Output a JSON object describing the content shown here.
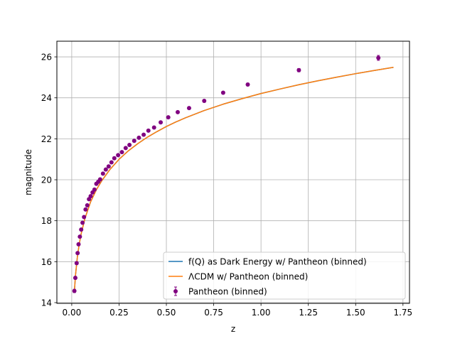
{
  "chart_data": {
    "type": "scatter",
    "xlabel": "z",
    "ylabel": "magnitude",
    "xlim": [
      -0.0785,
      1.7845
    ],
    "ylim": [
      13.965,
      26.765
    ],
    "xticks": [
      0.0,
      0.25,
      0.5,
      0.75,
      1.0,
      1.25,
      1.5,
      1.75
    ],
    "xtick_labels": [
      "0.00",
      "0.25",
      "0.50",
      "0.75",
      "1.00",
      "1.25",
      "1.50",
      "1.75"
    ],
    "yticks": [
      14,
      16,
      18,
      20,
      22,
      24,
      26
    ],
    "ytick_labels": [
      "14",
      "16",
      "18",
      "20",
      "22",
      "24",
      "26"
    ],
    "grid": true,
    "legend_position": "lower-right",
    "series": [
      {
        "name": "f(Q) as Dark Energy w/ Pantheon (binned)",
        "kind": "line",
        "color": "#1f77b4",
        "x": [
          0.014,
          0.02,
          0.03,
          0.04,
          0.05,
          0.07,
          0.1,
          0.13,
          0.16,
          0.2,
          0.25,
          0.3,
          0.35,
          0.4,
          0.45,
          0.5,
          0.55,
          0.6,
          0.7,
          0.8,
          0.9,
          1.0,
          1.1,
          1.2,
          1.3,
          1.4,
          1.5,
          1.6,
          1.7
        ],
        "y": [
          14.55,
          15.35,
          16.25,
          16.88,
          17.37,
          18.12,
          18.93,
          19.51,
          19.97,
          20.48,
          21.0,
          21.42,
          21.77,
          22.08,
          22.35,
          22.6,
          22.82,
          23.02,
          23.38,
          23.69,
          23.96,
          24.21,
          24.43,
          24.64,
          24.83,
          25.01,
          25.18,
          25.34,
          25.49
        ]
      },
      {
        "name": "ΛCDM w/ Pantheon (binned)",
        "kind": "line",
        "color": "#ff7f0e",
        "x": [
          0.014,
          0.02,
          0.03,
          0.04,
          0.05,
          0.07,
          0.1,
          0.13,
          0.16,
          0.2,
          0.25,
          0.3,
          0.35,
          0.4,
          0.45,
          0.5,
          0.55,
          0.6,
          0.7,
          0.8,
          0.9,
          1.0,
          1.1,
          1.2,
          1.3,
          1.4,
          1.5,
          1.6,
          1.7
        ],
        "y": [
          14.55,
          15.35,
          16.25,
          16.88,
          17.37,
          18.12,
          18.93,
          19.51,
          19.97,
          20.48,
          21.0,
          21.42,
          21.77,
          22.08,
          22.35,
          22.6,
          22.82,
          23.02,
          23.38,
          23.69,
          23.96,
          24.21,
          24.43,
          24.64,
          24.83,
          25.01,
          25.18,
          25.34,
          25.49
        ]
      },
      {
        "name": "Pantheon (binned)",
        "kind": "errorbar",
        "color": "#800080",
        "x": [
          0.014,
          0.019,
          0.026,
          0.031,
          0.036,
          0.043,
          0.05,
          0.057,
          0.065,
          0.073,
          0.082,
          0.091,
          0.1,
          0.11,
          0.12,
          0.13,
          0.14,
          0.15,
          0.165,
          0.18,
          0.195,
          0.21,
          0.225,
          0.245,
          0.265,
          0.285,
          0.305,
          0.33,
          0.355,
          0.38,
          0.405,
          0.435,
          0.47,
          0.51,
          0.56,
          0.62,
          0.7,
          0.8,
          0.93,
          1.2,
          1.62
        ],
        "y": [
          14.57,
          15.21,
          15.93,
          16.42,
          16.85,
          17.22,
          17.57,
          17.9,
          18.18,
          18.55,
          18.75,
          19.05,
          19.2,
          19.38,
          19.52,
          19.8,
          19.9,
          20.02,
          20.3,
          20.5,
          20.65,
          20.85,
          21.05,
          21.2,
          21.35,
          21.55,
          21.7,
          21.9,
          22.05,
          22.2,
          22.4,
          22.55,
          22.8,
          23.05,
          23.3,
          23.5,
          23.85,
          24.25,
          24.65,
          25.35,
          25.95
        ],
        "yerr": [
          0.08,
          0.07,
          0.07,
          0.06,
          0.06,
          0.05,
          0.05,
          0.05,
          0.05,
          0.05,
          0.05,
          0.05,
          0.05,
          0.05,
          0.05,
          0.05,
          0.05,
          0.05,
          0.05,
          0.05,
          0.05,
          0.05,
          0.05,
          0.05,
          0.05,
          0.05,
          0.05,
          0.05,
          0.05,
          0.05,
          0.05,
          0.05,
          0.05,
          0.05,
          0.05,
          0.05,
          0.06,
          0.06,
          0.07,
          0.08,
          0.12
        ]
      }
    ]
  }
}
